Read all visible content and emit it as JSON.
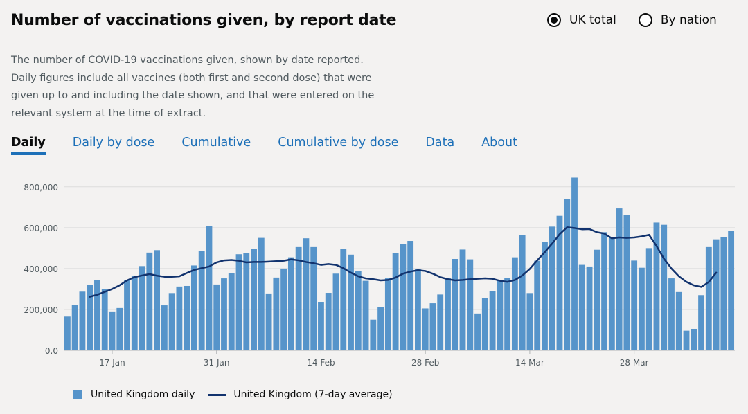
{
  "title": "Number of vaccinations given, by report date",
  "view_options": [
    {
      "label": "UK total",
      "selected": true
    },
    {
      "label": "By nation",
      "selected": false
    }
  ],
  "description": "The number of COVID-19 vaccinations given, shown by date reported. Daily figures include all vaccines (both first and second dose) that were given up to and including the date shown, and that were entered on the relevant system at the time of extract.",
  "tabs": [
    "Daily",
    "Daily by dose",
    "Cumulative",
    "Cumulative by dose",
    "Data",
    "About"
  ],
  "active_tab": "Daily",
  "colors": {
    "bar": "#5694ca",
    "line": "#12336e",
    "link": "#1d70b8"
  },
  "legend": {
    "bars_label": "United Kingdom daily",
    "line_label": "United Kingdom (7-day average)"
  },
  "chart_data": {
    "type": "bar",
    "ylim": [
      0,
      850000
    ],
    "y_ticks": [
      0,
      200000,
      400000,
      600000,
      800000
    ],
    "y_tick_labels": [
      "0.0",
      "200,000",
      "400,000",
      "600,000",
      "800,000"
    ],
    "x_tick_labels": [
      {
        "label": "17 Jan",
        "index": 6
      },
      {
        "label": "31 Jan",
        "index": 20
      },
      {
        "label": "14 Feb",
        "index": 34
      },
      {
        "label": "28 Feb",
        "index": 48
      },
      {
        "label": "14 Mar",
        "index": 62
      },
      {
        "label": "28 Mar",
        "index": 76
      }
    ],
    "grid": true,
    "legend_position": "bottom-left",
    "series": [
      {
        "name": "United Kingdom daily",
        "type": "bar",
        "values": [
          165000,
          222000,
          287000,
          320000,
          345000,
          298000,
          190000,
          207000,
          345000,
          365000,
          412000,
          478000,
          490000,
          220000,
          280000,
          312000,
          315000,
          415000,
          487000,
          607000,
          322000,
          352000,
          378000,
          470000,
          477000,
          495000,
          550000,
          278000,
          356000,
          400000,
          455000,
          505000,
          548000,
          505000,
          237000,
          281000,
          375000,
          495000,
          468000,
          387000,
          340000,
          150000,
          210000,
          352000,
          476000,
          520000,
          535000,
          398000,
          205000,
          230000,
          273000,
          355000,
          447000,
          493000,
          445000,
          180000,
          255000,
          288000,
          340000,
          355000,
          455000,
          563000,
          280000,
          438000,
          530000,
          605000,
          658000,
          740000,
          845000,
          418000,
          410000,
          492000,
          578000,
          555000,
          694000,
          663000,
          439000,
          404000,
          500000,
          625000,
          614000,
          352000,
          285000,
          96000,
          105000,
          270000,
          505000,
          543000,
          555000,
          585000
        ]
      },
      {
        "name": "United Kingdom (7-day average)",
        "type": "line",
        "start_index": 3,
        "values": [
          262000,
          272000,
          286000,
          300000,
          318000,
          342000,
          358000,
          366000,
          373000,
          365000,
          360000,
          360000,
          362000,
          378000,
          393000,
          402000,
          410000,
          430000,
          440000,
          442000,
          438000,
          430000,
          432000,
          432000,
          434000,
          436000,
          438000,
          445000,
          440000,
          432000,
          426000,
          418000,
          422000,
          418000,
          402000,
          380000,
          362000,
          352000,
          348000,
          342000,
          344000,
          356000,
          375000,
          385000,
          392000,
          388000,
          375000,
          358000,
          348000,
          342000,
          344000,
          348000,
          350000,
          352000,
          350000,
          340000,
          335000,
          344000,
          366000,
          398000,
          440000,
          480000,
          522000,
          568000,
          602000,
          598000,
          592000,
          593000,
          578000,
          571000,
          548000,
          552000,
          550000,
          552000,
          557000,
          565000,
          510000,
          448000,
          400000,
          362000,
          335000,
          318000,
          310000,
          334000,
          380000
        ]
      }
    ]
  }
}
